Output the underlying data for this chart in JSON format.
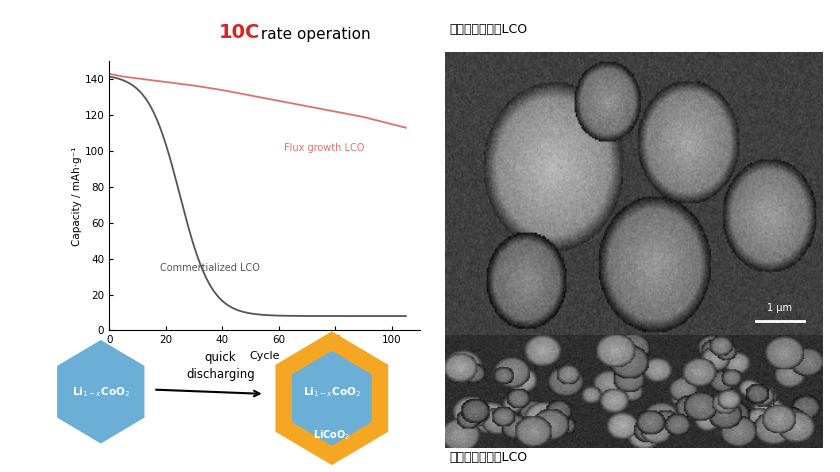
{
  "title_10C": "10C",
  "title_rate": " rate operation",
  "ylabel": "Capacity / mAh·g⁻¹",
  "xlabel": "Cycle",
  "flux_label": "Flux growth LCO",
  "comm_label": "Commertialized LCO",
  "flux_color": "#e07070",
  "comm_color": "#555555",
  "title_color": "#dd2222",
  "bg_color": "#ffffff",
  "ylim": [
    0,
    150
  ],
  "xlim": [
    0,
    110
  ],
  "yticks": [
    0,
    20,
    40,
    60,
    80,
    100,
    120,
    140
  ],
  "xticks": [
    0,
    20,
    40,
    60,
    80,
    100
  ],
  "label1_jp": "市販の高出力用LCO",
  "label2_jp": "信大クリスタルLCO",
  "hex_text1": "Li$_{1-x}$CoO$_2$",
  "hex_text2": "Li$_{1-x}$CoO$_2$",
  "hex_text3": "LiCoO$_2$",
  "arrow_text": "quick\ndischarging",
  "hex1_color": "#6baed6",
  "hex2_inner_color": "#6baed6",
  "hex2_outer_color": "#f5a623",
  "scale_bar_text": "1 μm"
}
